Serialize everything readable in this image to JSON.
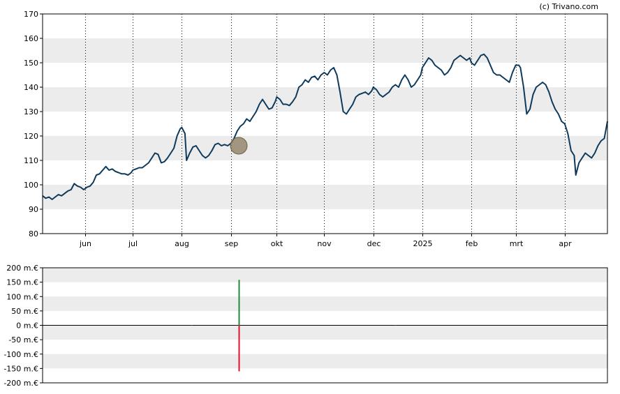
{
  "credit": "(c) Trivano.com",
  "colors": {
    "line": "#0d3a5c",
    "band": "#ececec",
    "marker": "#8b7a5e",
    "bar_up": "#1f8a3b",
    "bar_down": "#e0102a",
    "axis": "#000000"
  },
  "chart_data": [
    {
      "type": "line",
      "title": "",
      "xlabel": "",
      "ylabel": "",
      "ylim": [
        80,
        170
      ],
      "y_ticks": [
        "80",
        "90",
        "100",
        "110",
        "120",
        "130",
        "140",
        "150",
        "160",
        "170"
      ],
      "x_tick_labels": [
        "jun",
        "jul",
        "aug",
        "sep",
        "okt",
        "nov",
        "dec",
        "2025",
        "feb",
        "mrt",
        "apr"
      ],
      "x_tick_days": [
        27,
        57,
        88,
        119,
        148,
        178,
        209,
        240,
        271,
        299,
        330
      ],
      "x_range_days": [
        0,
        357
      ],
      "x_unit": "days from start (≈ 2024-05-06)",
      "grid": "vertical dotted lines at month ticks, horizontal alternating bands",
      "marker": {
        "x": 124,
        "y": 116,
        "shape": "circle"
      },
      "series": [
        {
          "points": [
            [
              0,
              95.5
            ],
            [
              2,
              94.5
            ],
            [
              4,
              95
            ],
            [
              6,
              94
            ],
            [
              8,
              95
            ],
            [
              10,
              96
            ],
            [
              12,
              95.5
            ],
            [
              14,
              96.5
            ],
            [
              16,
              97.5
            ],
            [
              18,
              98
            ],
            [
              20,
              100.5
            ],
            [
              22,
              99.5
            ],
            [
              24,
              99
            ],
            [
              26,
              98
            ],
            [
              27,
              98.5
            ],
            [
              28,
              99
            ],
            [
              30,
              99.5
            ],
            [
              32,
              101
            ],
            [
              34,
              104
            ],
            [
              36,
              104.5
            ],
            [
              38,
              106
            ],
            [
              40,
              107.5
            ],
            [
              42,
              106
            ],
            [
              44,
              106.5
            ],
            [
              46,
              105.5
            ],
            [
              48,
              105
            ],
            [
              50,
              104.5
            ],
            [
              52,
              104.5
            ],
            [
              54,
              104
            ],
            [
              56,
              105
            ],
            [
              57,
              106
            ],
            [
              59,
              106.5
            ],
            [
              61,
              107
            ],
            [
              63,
              107
            ],
            [
              65,
              108
            ],
            [
              67,
              109
            ],
            [
              69,
              111
            ],
            [
              71,
              113
            ],
            [
              73,
              112.5
            ],
            [
              75,
              109
            ],
            [
              77,
              109.5
            ],
            [
              79,
              111
            ],
            [
              81,
              113
            ],
            [
              83,
              115
            ],
            [
              85,
              120
            ],
            [
              87,
              123
            ],
            [
              88,
              123.5
            ],
            [
              90,
              121
            ],
            [
              91,
              110
            ],
            [
              93,
              113
            ],
            [
              95,
              115.5
            ],
            [
              97,
              116
            ],
            [
              99,
              114
            ],
            [
              101,
              112
            ],
            [
              103,
              111
            ],
            [
              105,
              112
            ],
            [
              107,
              114
            ],
            [
              109,
              116.5
            ],
            [
              111,
              117
            ],
            [
              113,
              116
            ],
            [
              115,
              116.5
            ],
            [
              117,
              116
            ],
            [
              119,
              117
            ],
            [
              121,
              119
            ],
            [
              123,
              122
            ],
            [
              125,
              124
            ],
            [
              127,
              125
            ],
            [
              129,
              127
            ],
            [
              131,
              126
            ],
            [
              133,
              128
            ],
            [
              135,
              130
            ],
            [
              137,
              133
            ],
            [
              139,
              135
            ],
            [
              141,
              133
            ],
            [
              143,
              131
            ],
            [
              145,
              131.5
            ],
            [
              147,
              134
            ],
            [
              148,
              136
            ],
            [
              150,
              135
            ],
            [
              152,
              133
            ],
            [
              154,
              133
            ],
            [
              156,
              132.5
            ],
            [
              158,
              134
            ],
            [
              160,
              136
            ],
            [
              162,
              140
            ],
            [
              164,
              141
            ],
            [
              166,
              143
            ],
            [
              168,
              142
            ],
            [
              170,
              144
            ],
            [
              172,
              144.5
            ],
            [
              174,
              143
            ],
            [
              176,
              145
            ],
            [
              178,
              146
            ],
            [
              180,
              145
            ],
            [
              182,
              147
            ],
            [
              184,
              148
            ],
            [
              186,
              145
            ],
            [
              188,
              138
            ],
            [
              190,
              130
            ],
            [
              192,
              129
            ],
            [
              194,
              131
            ],
            [
              196,
              133
            ],
            [
              198,
              136
            ],
            [
              200,
              137
            ],
            [
              202,
              137.5
            ],
            [
              204,
              138
            ],
            [
              206,
              137
            ],
            [
              208,
              138.5
            ],
            [
              209,
              140
            ],
            [
              211,
              139
            ],
            [
              213,
              137
            ],
            [
              215,
              136
            ],
            [
              217,
              137
            ],
            [
              219,
              138
            ],
            [
              221,
              140
            ],
            [
              223,
              141
            ],
            [
              225,
              140
            ],
            [
              227,
              143
            ],
            [
              229,
              145
            ],
            [
              231,
              143
            ],
            [
              233,
              140
            ],
            [
              235,
              141
            ],
            [
              237,
              143
            ],
            [
              239,
              145
            ],
            [
              240,
              148
            ],
            [
              242,
              150
            ],
            [
              244,
              152
            ],
            [
              246,
              151
            ],
            [
              248,
              149
            ],
            [
              250,
              148
            ],
            [
              252,
              147
            ],
            [
              254,
              145
            ],
            [
              256,
              146
            ],
            [
              258,
              148
            ],
            [
              260,
              151
            ],
            [
              262,
              152
            ],
            [
              264,
              153
            ],
            [
              266,
              152
            ],
            [
              268,
              151
            ],
            [
              270,
              152
            ],
            [
              271,
              150
            ],
            [
              273,
              149
            ],
            [
              275,
              151
            ],
            [
              277,
              153
            ],
            [
              279,
              153.5
            ],
            [
              281,
              152
            ],
            [
              283,
              149
            ],
            [
              285,
              146
            ],
            [
              287,
              145
            ],
            [
              289,
              145
            ],
            [
              291,
              144
            ],
            [
              293,
              143
            ],
            [
              295,
              142
            ],
            [
              297,
              146
            ],
            [
              299,
              149
            ],
            [
              301,
              149
            ],
            [
              302,
              148
            ],
            [
              304,
              140
            ],
            [
              306,
              129
            ],
            [
              308,
              131
            ],
            [
              310,
              137
            ],
            [
              312,
              140
            ],
            [
              314,
              141
            ],
            [
              316,
              142
            ],
            [
              318,
              141
            ],
            [
              320,
              138
            ],
            [
              322,
              134
            ],
            [
              324,
              131
            ],
            [
              326,
              129
            ],
            [
              328,
              126
            ],
            [
              330,
              125
            ],
            [
              332,
              121
            ],
            [
              334,
              114
            ],
            [
              336,
              112
            ],
            [
              337,
              104
            ],
            [
              339,
              109
            ],
            [
              341,
              111
            ],
            [
              343,
              113
            ],
            [
              345,
              112
            ],
            [
              347,
              111
            ],
            [
              349,
              113
            ],
            [
              351,
              116
            ],
            [
              353,
              118
            ],
            [
              355,
              119
            ],
            [
              357,
              126
            ]
          ]
        }
      ]
    },
    {
      "type": "bar",
      "title": "",
      "xlabel": "",
      "ylabel": "",
      "ylim": [
        -200,
        200
      ],
      "y_ticks": [
        "200 m.€",
        "150 m.€",
        "100 m.€",
        "50 m.€",
        "0 m.€",
        "-50 m.€",
        "-100 m.€",
        "-150 m.€",
        "-200 m.€"
      ],
      "bars": [
        {
          "x": 124,
          "value": 158
        },
        {
          "x": 124,
          "value": -160
        },
        {
          "x": 94,
          "value": 1
        },
        {
          "x": 223,
          "value": -1
        }
      ]
    }
  ]
}
